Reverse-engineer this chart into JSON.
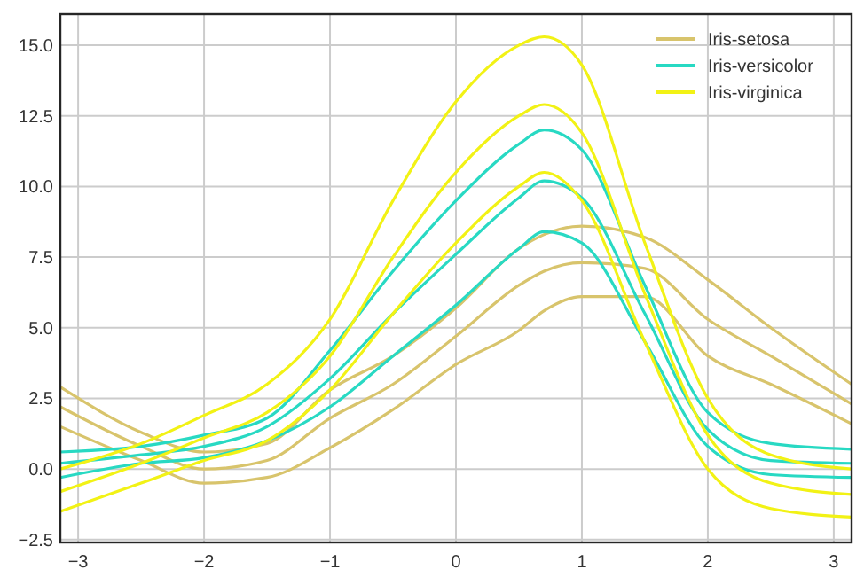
{
  "chart_data": {
    "type": "line",
    "x": [
      -3.1416,
      -2.5,
      -2,
      -1.5,
      -1,
      -0.5,
      0,
      0.5,
      0.7,
      1,
      1.5,
      2,
      2.5,
      3.1416
    ],
    "series": [
      {
        "name": "Iris-setosa",
        "color": "#d8c46c",
        "values": [
          2.9,
          1.3,
          0.6,
          0.9,
          2.8,
          4,
          5.7,
          7.8,
          8.3,
          8.6,
          8.2,
          6.7,
          5,
          3
        ]
      },
      {
        "color": "#d8c46c",
        "values": [
          2.2,
          0.8,
          0,
          0.3,
          1.8,
          3,
          4.7,
          6.5,
          7,
          7.3,
          7.1,
          5.3,
          4,
          2.3
        ]
      },
      {
        "color": "#d8c46c",
        "values": [
          1.5,
          0.3,
          -0.5,
          -0.3,
          0.75,
          2.1,
          3.7,
          4.9,
          5.6,
          6.1,
          6.1,
          4,
          3,
          1.6
        ]
      },
      {
        "name": "Iris-versicolor",
        "color": "#28d9c3",
        "values": [
          0.6,
          0.8,
          1.2,
          1.8,
          4.2,
          7,
          9.5,
          11.5,
          12,
          11.3,
          6.5,
          2,
          0.9,
          0.7
        ]
      },
      {
        "color": "#28d9c3",
        "values": [
          0.2,
          0.5,
          0.8,
          1.5,
          3.2,
          5.5,
          7.6,
          9.6,
          10.2,
          9.6,
          5.5,
          1.4,
          0.3,
          0.2
        ]
      },
      {
        "color": "#28d9c3",
        "values": [
          -0.3,
          0.2,
          0.4,
          1,
          2.2,
          4,
          5.8,
          7.8,
          8.4,
          8,
          4.5,
          0.8,
          -0.2,
          -0.3
        ]
      },
      {
        "name": "Iris-virginica",
        "color": "#f2f215",
        "values": [
          0,
          0.9,
          1.9,
          3,
          5.3,
          9.5,
          13,
          15,
          15.3,
          14.3,
          8,
          2.5,
          0.5,
          0
        ]
      },
      {
        "color": "#f2f215",
        "values": [
          -0.8,
          0.2,
          1.1,
          2,
          4,
          7.5,
          10.5,
          12.5,
          12.9,
          11.9,
          6.2,
          1.2,
          -0.5,
          -0.9
        ]
      },
      {
        "color": "#f2f215",
        "values": [
          -1.5,
          -0.5,
          0.3,
          1,
          2.8,
          5.5,
          8,
          10,
          10.5,
          9.5,
          4.5,
          0,
          -1.4,
          -1.7
        ]
      }
    ],
    "xlim": [
      -3.1416,
      3.1416
    ],
    "xticks": [
      {
        "value": -3,
        "label": "−3"
      },
      {
        "value": -2,
        "label": "−2"
      },
      {
        "value": -1,
        "label": "−1"
      },
      0,
      1,
      2,
      3
    ],
    "ylim": [
      -2.6,
      16.1
    ],
    "yticks": [
      {
        "value": -2.5,
        "label": "−2.5"
      },
      {
        "value": 0,
        "label": "0.0"
      },
      {
        "value": 2.5,
        "label": "2.5"
      },
      {
        "value": 5,
        "label": "5.0"
      },
      {
        "value": 7.5,
        "label": "7.5"
      },
      {
        "value": 10,
        "label": "10.0"
      },
      {
        "value": 12.5,
        "label": "12.5"
      },
      {
        "value": 15,
        "label": "15.0"
      }
    ],
    "grid": true,
    "legend": "top right",
    "marker": "none",
    "line_style": "solid"
  }
}
